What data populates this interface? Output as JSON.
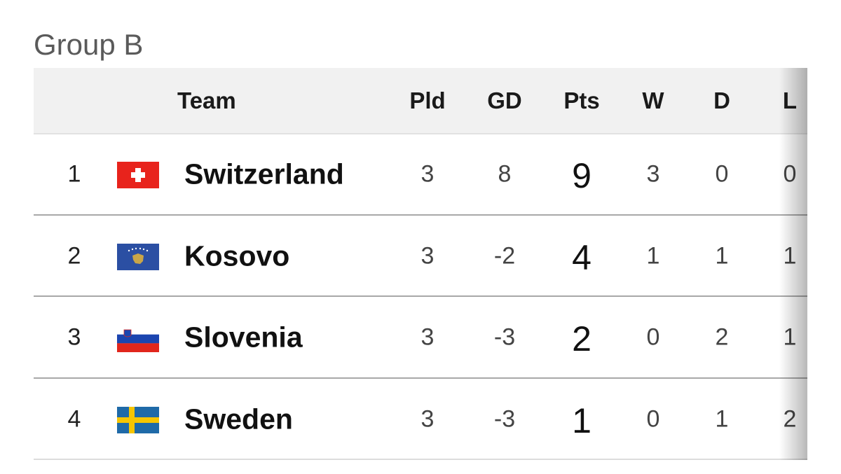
{
  "title": "Group B",
  "table": {
    "columns": [
      "Team",
      "Pld",
      "GD",
      "Pts",
      "W",
      "D",
      "L"
    ],
    "rows": [
      [
        1,
        "Switzerland",
        3,
        8,
        9,
        3,
        0,
        0
      ],
      [
        2,
        "Kosovo",
        3,
        -2,
        4,
        1,
        1,
        1
      ],
      [
        3,
        "Slovenia",
        3,
        -3,
        2,
        0,
        2,
        1
      ],
      [
        4,
        "Sweden",
        3,
        -3,
        1,
        0,
        1,
        2
      ]
    ]
  }
}
